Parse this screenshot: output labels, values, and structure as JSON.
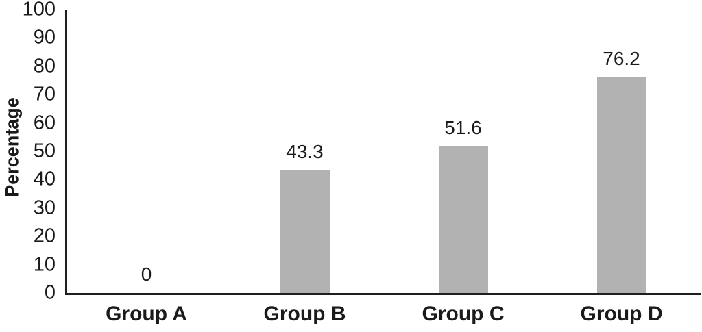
{
  "chart_data": {
    "type": "bar",
    "title": "",
    "xlabel": "",
    "ylabel": "Percentage",
    "categories": [
      "Group A",
      "Group B",
      "Group C",
      "Group D"
    ],
    "values": [
      0,
      43.3,
      51.6,
      76.2
    ],
    "value_labels": [
      "0",
      "43.3",
      "51.6",
      "76.2"
    ],
    "ylim": [
      0,
      100
    ],
    "yticks": [
      0,
      10,
      20,
      30,
      40,
      50,
      60,
      70,
      80,
      90,
      100
    ],
    "grid": false,
    "legend": "none",
    "bar_color": "#b2b2b2",
    "axis_color": "#1f1f1f",
    "text_color": "#1a1a1a"
  }
}
